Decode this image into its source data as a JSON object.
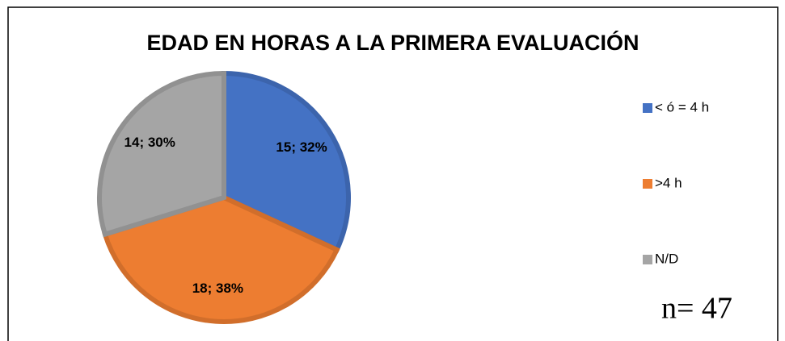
{
  "chart_data": {
    "type": "pie",
    "title": "EDAD EN HORAS A LA PRIMERA EVALUACIÓN",
    "categories": [
      "< ó = 4 h",
      ">4 h",
      "N/D"
    ],
    "values": [
      15,
      18,
      14
    ],
    "value_labels": [
      "15; 32%",
      "18; 38%",
      "14; 30%"
    ],
    "colors": [
      "#4472c4",
      "#ed7d31",
      "#a5a5a5"
    ],
    "legend": "right",
    "annotation": "n= 47"
  }
}
